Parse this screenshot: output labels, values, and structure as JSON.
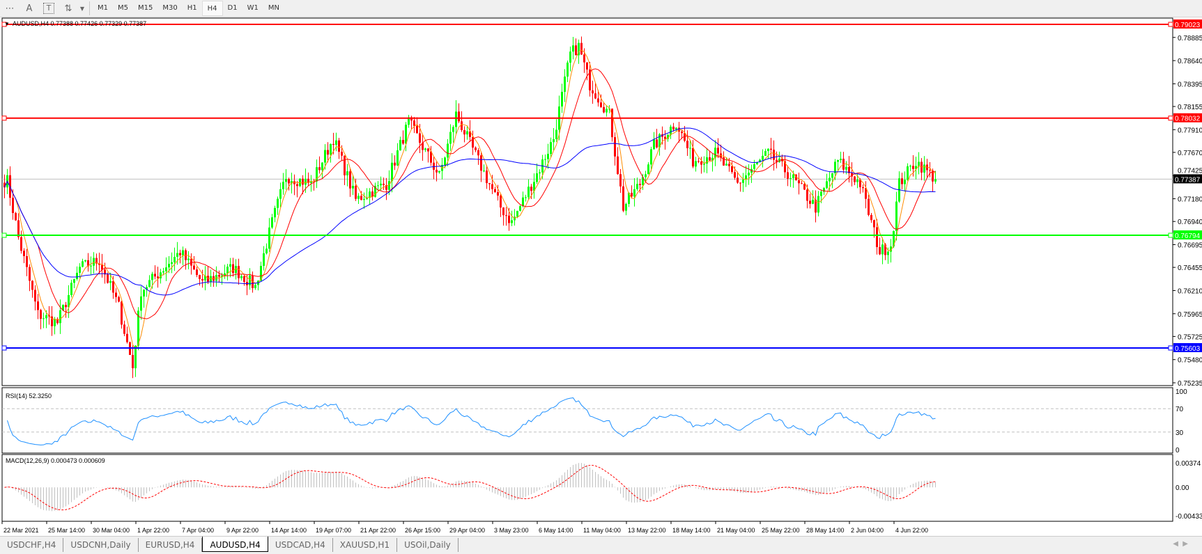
{
  "toolbar": {
    "tools": [
      {
        "icon": "text-label-icon",
        "glyph": "A"
      },
      {
        "icon": "text-box-icon",
        "glyph": "T"
      },
      {
        "icon": "arrows-icon",
        "glyph": "⇅"
      }
    ],
    "timeframes": [
      "M1",
      "M5",
      "M15",
      "M30",
      "H1",
      "H4",
      "D1",
      "W1",
      "MN"
    ],
    "active_timeframe": "H4"
  },
  "chart": {
    "header": "AUDUSD,H4  0.77388 0.77426 0.77329 0.77387",
    "price_ticks": [
      "0.78885",
      "0.78640",
      "0.78395",
      "0.78155",
      "0.77910",
      "0.77670",
      "0.77425",
      "0.77180",
      "0.76940",
      "0.76695",
      "0.76455",
      "0.76210",
      "0.75965",
      "0.75725",
      "0.75480",
      "0.75235"
    ],
    "current_price": "0.77387",
    "levels": [
      {
        "price": "0.79023",
        "color": "#ff0000"
      },
      {
        "price": "0.78032",
        "color": "#ff0000"
      },
      {
        "price": "0.76794",
        "color": "#00ff00"
      },
      {
        "price": "0.75603",
        "color": "#0000ff"
      }
    ],
    "time_ticks": [
      "22 Mar 2021",
      "25 Mar 14:00",
      "30 Mar 04:00",
      "1 Apr 22:00",
      "7 Apr 04:00",
      "9 Apr 22:00",
      "14 Apr 14:00",
      "19 Apr 07:00",
      "21 Apr 22:00",
      "26 Apr 15:00",
      "29 Apr 04:00",
      "3 May 23:00",
      "6 May 14:00",
      "11 May 04:00",
      "13 May 22:00",
      "18 May 14:00",
      "21 May 04:00",
      "25 May 22:00",
      "28 May 14:00",
      "2 Jun 04:00",
      "4 Jun 22:00"
    ],
    "colors": {
      "bull": "#00ff00",
      "bear": "#ff0000",
      "ma_fast": "#ff8c00",
      "ma_mid": "#ff0000",
      "ma_slow": "#0000ff",
      "rsi": "#1e90ff",
      "macd_signal": "#ff0000",
      "macd_hist": "#c0c0c0"
    }
  },
  "rsi": {
    "label": "RSI(14) 52.3250",
    "ticks": [
      "100",
      "70",
      "30",
      "0"
    ]
  },
  "macd": {
    "label": "MACD(12,26,9) 0.000473 0.000609",
    "ticks": [
      "0.00374",
      "0.00",
      "-0.00433"
    ]
  },
  "chart_data": {
    "type": "candlestick",
    "symbol": "AUDUSD",
    "timeframe": "H4",
    "x_unit": "bar index",
    "ylim": [
      0.752,
      0.791
    ],
    "approx_close_path": [
      [
        1,
        0.7737
      ],
      [
        5,
        0.7677
      ],
      [
        12,
        0.7596
      ],
      [
        19,
        0.7587
      ],
      [
        27,
        0.7645
      ],
      [
        34,
        0.7653
      ],
      [
        41,
        0.7604
      ],
      [
        46,
        0.754
      ],
      [
        49,
        0.7621
      ],
      [
        63,
        0.7662
      ],
      [
        71,
        0.7629
      ],
      [
        82,
        0.7645
      ],
      [
        90,
        0.7625
      ],
      [
        96,
        0.7693
      ],
      [
        101,
        0.7742
      ],
      [
        110,
        0.7734
      ],
      [
        118,
        0.7782
      ],
      [
        126,
        0.7717
      ],
      [
        137,
        0.7734
      ],
      [
        145,
        0.7799
      ],
      [
        156,
        0.7742
      ],
      [
        162,
        0.7807
      ],
      [
        170,
        0.7758
      ],
      [
        178,
        0.7709
      ],
      [
        182,
        0.7693
      ],
      [
        192,
        0.775
      ],
      [
        197,
        0.7782
      ],
      [
        203,
        0.7871
      ],
      [
        206,
        0.7879
      ],
      [
        210,
        0.7839
      ],
      [
        217,
        0.7807
      ],
      [
        222,
        0.7709
      ],
      [
        228,
        0.7734
      ],
      [
        233,
        0.7774
      ],
      [
        241,
        0.7799
      ],
      [
        247,
        0.7758
      ],
      [
        255,
        0.7766
      ],
      [
        263,
        0.7734
      ],
      [
        274,
        0.7766
      ],
      [
        282,
        0.7742
      ],
      [
        291,
        0.7709
      ],
      [
        299,
        0.7758
      ],
      [
        307,
        0.7734
      ],
      [
        314,
        0.7662
      ],
      [
        318,
        0.7669
      ],
      [
        321,
        0.7734
      ],
      [
        327,
        0.7758
      ],
      [
        334,
        0.77387
      ]
    ]
  },
  "tabs": [
    {
      "label": "USDCHF,H4"
    },
    {
      "label": "USDCNH,Daily"
    },
    {
      "label": "EURUSD,H4"
    },
    {
      "label": "AUDUSD,H4",
      "active": true
    },
    {
      "label": "USDCAD,H4"
    },
    {
      "label": "XAUUSD,H1"
    },
    {
      "label": "USOil,Daily"
    }
  ]
}
